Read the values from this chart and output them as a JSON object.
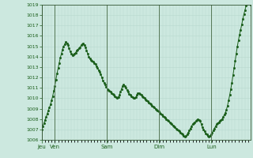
{
  "background_color": "#cce8df",
  "plot_bg_color": "#cce8df",
  "line_color": "#1a5e1a",
  "grid_color_minor": "#b8d8ce",
  "grid_color_major": "#557755",
  "tick_label_color": "#1a5e1a",
  "ymin": 1006,
  "ymax": 1019,
  "yticks": [
    1006,
    1007,
    1008,
    1009,
    1010,
    1011,
    1012,
    1013,
    1014,
    1015,
    1016,
    1017,
    1018,
    1019
  ],
  "day_labels": [
    "Jeu",
    "Ven",
    "Sam",
    "Dim",
    "Lun"
  ],
  "total_hours": 300,
  "pressure_data": [
    1007.0,
    1007.3,
    1007.6,
    1007.9,
    1008.2,
    1008.5,
    1008.8,
    1009.1,
    1009.4,
    1009.8,
    1010.2,
    1010.7,
    1011.2,
    1011.8,
    1012.4,
    1012.9,
    1013.4,
    1013.9,
    1014.3,
    1014.7,
    1015.0,
    1015.2,
    1015.4,
    1015.3,
    1015.1,
    1014.8,
    1014.5,
    1014.3,
    1014.1,
    1014.2,
    1014.3,
    1014.4,
    1014.6,
    1014.7,
    1014.8,
    1014.9,
    1015.1,
    1015.2,
    1015.3,
    1015.1,
    1014.9,
    1014.6,
    1014.3,
    1014.0,
    1013.8,
    1013.7,
    1013.6,
    1013.5,
    1013.4,
    1013.3,
    1013.1,
    1012.9,
    1012.7,
    1012.5,
    1012.3,
    1012.0,
    1011.7,
    1011.5,
    1011.3,
    1011.1,
    1010.9,
    1010.8,
    1010.7,
    1010.6,
    1010.5,
    1010.4,
    1010.3,
    1010.2,
    1010.1,
    1010.0,
    1010.1,
    1010.3,
    1010.6,
    1010.9,
    1011.2,
    1011.3,
    1011.2,
    1011.0,
    1010.8,
    1010.6,
    1010.4,
    1010.3,
    1010.2,
    1010.1,
    1010.0,
    1010.0,
    1010.1,
    1010.3,
    1010.5,
    1010.5,
    1010.4,
    1010.3,
    1010.2,
    1010.1,
    1010.0,
    1009.9,
    1009.8,
    1009.7,
    1009.6,
    1009.5,
    1009.4,
    1009.3,
    1009.2,
    1009.1,
    1009.0,
    1008.9,
    1008.8,
    1008.7,
    1008.6,
    1008.5,
    1008.4,
    1008.3,
    1008.2,
    1008.1,
    1008.0,
    1007.9,
    1007.8,
    1007.7,
    1007.6,
    1007.5,
    1007.4,
    1007.3,
    1007.2,
    1007.1,
    1007.0,
    1006.9,
    1006.8,
    1006.7,
    1006.6,
    1006.5,
    1006.4,
    1006.3,
    1006.4,
    1006.5,
    1006.7,
    1006.9,
    1007.1,
    1007.3,
    1007.5,
    1007.6,
    1007.7,
    1007.8,
    1007.9,
    1008.0,
    1007.9,
    1007.8,
    1007.5,
    1007.2,
    1007.0,
    1006.8,
    1006.6,
    1006.5,
    1006.4,
    1006.3,
    1006.4,
    1006.5,
    1006.7,
    1006.9,
    1007.1,
    1007.3,
    1007.5,
    1007.6,
    1007.7,
    1007.8,
    1007.9,
    1008.0,
    1008.2,
    1008.4,
    1008.6,
    1008.9,
    1009.3,
    1009.8,
    1010.3,
    1010.9,
    1011.5,
    1012.2,
    1012.9,
    1013.6,
    1014.3,
    1015.0,
    1015.6,
    1016.1,
    1016.6,
    1017.1,
    1017.6,
    1018.1,
    1018.5,
    1018.9,
    1019.1,
    1019.3,
    1019.2,
    1019.0
  ]
}
